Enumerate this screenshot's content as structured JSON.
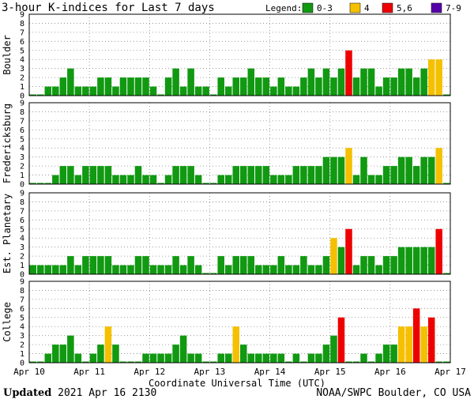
{
  "chart_data": {
    "type": "bar",
    "title": "3-hour K-indices for Last 7 days",
    "xlabel": "Coordinate Universal Time (UTC)",
    "ylim": [
      0,
      9
    ],
    "yticks": [
      "0",
      "1",
      "2",
      "3",
      "4",
      "5",
      "6",
      "7",
      "8",
      "9"
    ],
    "x_tick_labels": [
      "Apr 10",
      "Apr 11",
      "Apr 12",
      "Apr 13",
      "Apr 14",
      "Apr 15",
      "Apr 16",
      "Apr 17"
    ],
    "intervals_per_day": 8,
    "legend": {
      "label": "Legend:",
      "items": [
        {
          "label": "0-3",
          "color": "#119911"
        },
        {
          "label": "4",
          "color": "#F5C000"
        },
        {
          "label": "5,6",
          "color": "#EE0000"
        },
        {
          "label": "7-9",
          "color": "#5500AA"
        }
      ]
    },
    "series": [
      {
        "name": "Boulder",
        "values": [
          0,
          0,
          1,
          1,
          2,
          3,
          1,
          1,
          1,
          2,
          2,
          1,
          2,
          2,
          2,
          2,
          1,
          0,
          2,
          3,
          1,
          3,
          1,
          1,
          0,
          2,
          1,
          2,
          2,
          3,
          2,
          2,
          1,
          2,
          1,
          1,
          2,
          3,
          2,
          3,
          2,
          3,
          5,
          2,
          3,
          3,
          1,
          2,
          2,
          3,
          3,
          2,
          3,
          4,
          4,
          0
        ]
      },
      {
        "name": "Fredericksburg",
        "values": [
          0,
          0,
          0,
          1,
          2,
          2,
          1,
          2,
          2,
          2,
          2,
          1,
          1,
          1,
          2,
          1,
          1,
          0,
          1,
          2,
          2,
          2,
          1,
          0,
          0,
          1,
          1,
          2,
          2,
          2,
          2,
          2,
          1,
          1,
          1,
          2,
          2,
          2,
          2,
          3,
          3,
          3,
          4,
          1,
          3,
          1,
          1,
          2,
          2,
          3,
          3,
          2,
          3,
          3,
          4,
          0
        ]
      },
      {
        "name": "Est. Planetary",
        "values": [
          1,
          1,
          1,
          1,
          1,
          2,
          1,
          2,
          2,
          2,
          2,
          1,
          1,
          1,
          2,
          2,
          1,
          1,
          1,
          2,
          1,
          2,
          1,
          0,
          0,
          2,
          1,
          2,
          2,
          2,
          1,
          1,
          1,
          2,
          1,
          1,
          2,
          1,
          1,
          2,
          4,
          3,
          5,
          1,
          2,
          2,
          1,
          2,
          2,
          3,
          3,
          3,
          3,
          3,
          5,
          0
        ]
      },
      {
        "name": "College",
        "values": [
          0,
          0,
          1,
          2,
          2,
          3,
          1,
          0,
          1,
          2,
          4,
          2,
          0,
          0,
          0,
          1,
          1,
          1,
          1,
          2,
          3,
          1,
          1,
          0,
          0,
          1,
          1,
          4,
          2,
          1,
          1,
          1,
          1,
          1,
          0,
          1,
          0,
          1,
          1,
          2,
          3,
          5,
          0,
          0,
          1,
          0,
          1,
          2,
          2,
          4,
          4,
          6,
          4,
          5,
          0,
          0
        ]
      }
    ]
  },
  "footer": {
    "updated_label": "Updated",
    "updated_value": "2021 Apr 16 2130",
    "source": "NOAA/SWPC Boulder, CO USA"
  }
}
